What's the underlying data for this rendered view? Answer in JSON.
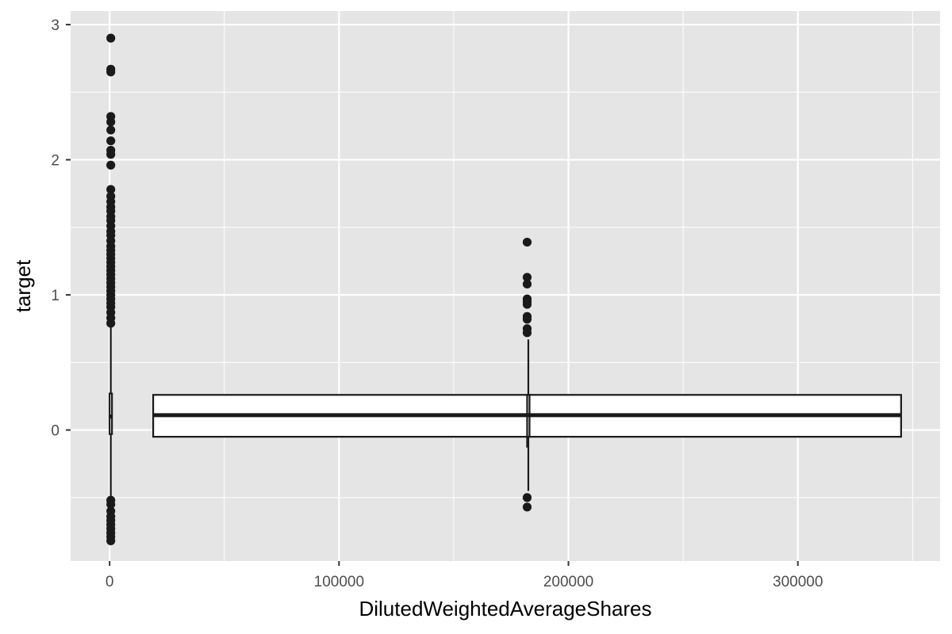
{
  "chart_data": {
    "type": "boxplot",
    "xlabel": "DilutedWeightedAverageShares",
    "ylabel": "target",
    "xlim": [
      -17000,
      362000
    ],
    "ylim": [
      -0.97,
      3.1
    ],
    "x_ticks": [
      0,
      100000,
      200000,
      300000
    ],
    "x_tick_labels": [
      "0",
      "100000",
      "200000",
      "300000"
    ],
    "y_ticks": [
      0,
      1,
      2,
      3
    ],
    "y_tick_labels": [
      "0",
      "1",
      "2",
      "3"
    ],
    "grid": true,
    "background": "#e5e5e5",
    "grid_color": "#ffffff",
    "mark_color": "#1a1a1a",
    "boxes": [
      {
        "x_left": 0,
        "x_right": 280,
        "whisker_low": -0.5,
        "q1": -0.03,
        "median": 0.1,
        "q3": 0.27,
        "whisker_high": 0.77,
        "outliers": [
          {
            "x": 0,
            "y": 2.9
          },
          {
            "x": 0,
            "y": 2.67
          },
          {
            "x": 0,
            "y": 2.65
          },
          {
            "x": 0,
            "y": 2.32
          },
          {
            "x": 0,
            "y": 2.28
          },
          {
            "x": 0,
            "y": 2.22
          },
          {
            "x": 0,
            "y": 2.14
          },
          {
            "x": 0,
            "y": 2.07
          },
          {
            "x": 0,
            "y": 2.04
          },
          {
            "x": 0,
            "y": 1.96
          },
          {
            "x": 0,
            "y": 1.78
          },
          {
            "x": 0,
            "y": 1.73
          },
          {
            "x": 0,
            "y": 1.69
          },
          {
            "x": 0,
            "y": 1.65
          },
          {
            "x": 0,
            "y": 1.62
          },
          {
            "x": 0,
            "y": 1.58
          },
          {
            "x": 0,
            "y": 1.55
          },
          {
            "x": 0,
            "y": 1.51
          },
          {
            "x": 0,
            "y": 1.47
          },
          {
            "x": 0,
            "y": 1.44
          },
          {
            "x": 0,
            "y": 1.4
          },
          {
            "x": 0,
            "y": 1.36
          },
          {
            "x": 0,
            "y": 1.33
          },
          {
            "x": 0,
            "y": 1.3
          },
          {
            "x": 0,
            "y": 1.27
          },
          {
            "x": 0,
            "y": 1.24
          },
          {
            "x": 0,
            "y": 1.21
          },
          {
            "x": 0,
            "y": 1.18
          },
          {
            "x": 0,
            "y": 1.15
          },
          {
            "x": 0,
            "y": 1.12
          },
          {
            "x": 0,
            "y": 1.09
          },
          {
            "x": 0,
            "y": 1.06
          },
          {
            "x": 0,
            "y": 1.03
          },
          {
            "x": 0,
            "y": 1.0
          },
          {
            "x": 0,
            "y": 0.97
          },
          {
            "x": 0,
            "y": 0.94
          },
          {
            "x": 0,
            "y": 0.91
          },
          {
            "x": 0,
            "y": 0.87
          },
          {
            "x": 0,
            "y": 0.83
          },
          {
            "x": 0,
            "y": 0.79
          },
          {
            "x": 0,
            "y": -0.52
          },
          {
            "x": 0,
            "y": -0.55
          },
          {
            "x": 0,
            "y": -0.6
          },
          {
            "x": 0,
            "y": -0.64
          },
          {
            "x": 0,
            "y": -0.67
          },
          {
            "x": 0,
            "y": -0.7
          },
          {
            "x": 0,
            "y": -0.73
          },
          {
            "x": 0,
            "y": -0.76
          },
          {
            "x": 0,
            "y": -0.79
          },
          {
            "x": 0,
            "y": -0.82
          }
        ]
      },
      {
        "x_left": 19000,
        "x_right": 345000,
        "whisker_low": -0.13,
        "q1": -0.05,
        "median": 0.11,
        "q3": 0.26,
        "whisker_high": 0.26,
        "outliers": []
      },
      {
        "x_left": 182000,
        "x_right": 182000,
        "whisker_low": -0.45,
        "q1": -0.05,
        "median": 0.11,
        "q3": 0.26,
        "whisker_high": 0.67,
        "outliers": [
          {
            "x": 182000,
            "y": 1.39
          },
          {
            "x": 182000,
            "y": 1.13
          },
          {
            "x": 182000,
            "y": 1.08
          },
          {
            "x": 182000,
            "y": 0.97
          },
          {
            "x": 182000,
            "y": 0.95
          },
          {
            "x": 182000,
            "y": 0.93
          },
          {
            "x": 182000,
            "y": 0.84
          },
          {
            "x": 182000,
            "y": 0.82
          },
          {
            "x": 182000,
            "y": 0.75
          },
          {
            "x": 182000,
            "y": 0.72
          },
          {
            "x": 182000,
            "y": -0.5
          },
          {
            "x": 182000,
            "y": -0.57
          }
        ]
      }
    ]
  }
}
